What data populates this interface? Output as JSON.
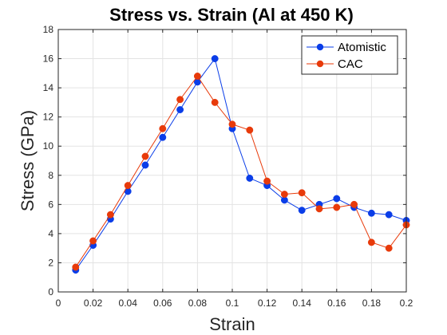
{
  "chart_data": {
    "type": "line",
    "title": "Stress vs. Strain (Al at 450 K)",
    "xlabel": "Strain",
    "ylabel": "Stress (GPa)",
    "xlim": [
      0,
      0.2
    ],
    "ylim": [
      0,
      18
    ],
    "xticks": [
      "0",
      "0.02",
      "0.04",
      "0.06",
      "0.08",
      "0.1",
      "0.12",
      "0.14",
      "0.16",
      "0.18",
      "0.2"
    ],
    "xtick_values": [
      0,
      0.02,
      0.04,
      0.06,
      0.08,
      0.1,
      0.12,
      0.14,
      0.16,
      0.18,
      0.2
    ],
    "yticks": [
      "0",
      "2",
      "4",
      "6",
      "8",
      "10",
      "12",
      "14",
      "16",
      "18"
    ],
    "ytick_values": [
      0,
      2,
      4,
      6,
      8,
      10,
      12,
      14,
      16,
      18
    ],
    "grid": true,
    "legend_position": "top-right",
    "series": [
      {
        "name": "Atomistic",
        "color": "#0a3de8",
        "x": [
          0.01,
          0.02,
          0.03,
          0.04,
          0.05,
          0.06,
          0.07,
          0.08,
          0.09,
          0.1,
          0.11,
          0.12,
          0.13,
          0.14,
          0.15,
          0.16,
          0.17,
          0.18,
          0.19,
          0.2
        ],
        "y": [
          1.5,
          3.2,
          5.0,
          6.9,
          8.7,
          10.6,
          12.5,
          14.4,
          16.0,
          11.2,
          7.8,
          7.3,
          6.3,
          5.6,
          6.0,
          6.4,
          5.8,
          5.4,
          5.3,
          4.9
        ]
      },
      {
        "name": "CAC",
        "color": "#e83a0a",
        "x": [
          0.01,
          0.02,
          0.03,
          0.04,
          0.05,
          0.06,
          0.07,
          0.08,
          0.09,
          0.1,
          0.11,
          0.12,
          0.13,
          0.14,
          0.15,
          0.16,
          0.17,
          0.18,
          0.19,
          0.2
        ],
        "y": [
          1.7,
          3.5,
          5.3,
          7.3,
          9.3,
          11.2,
          13.2,
          14.8,
          13.0,
          11.5,
          11.1,
          7.6,
          6.7,
          6.8,
          5.7,
          5.8,
          6.0,
          3.4,
          3.0,
          4.6
        ]
      }
    ]
  }
}
